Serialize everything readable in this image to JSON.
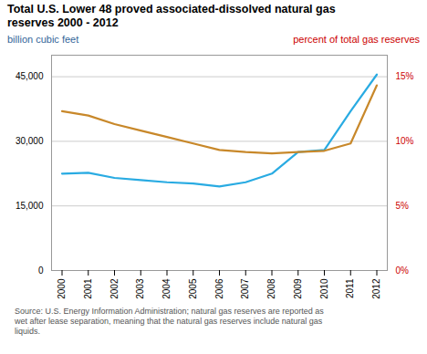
{
  "chart_data": {
    "type": "line",
    "title": "Total U.S. Lower 48 proved associated-dissolved natural gas\nreserves 2000 - 2012",
    "ylabel": "billion cubic feet",
    "y2label": "percent of total gas reserves",
    "source": "Source: U.S. Energy Information Administration; natural gas reserves are reported as\nwet after lease separation, meaning that the natural gas reserves include natural gas\nliquids.",
    "x": [
      2000,
      2001,
      2002,
      2003,
      2004,
      2005,
      2006,
      2007,
      2008,
      2009,
      2010,
      2011,
      2012
    ],
    "xlim": [
      1999.6,
      2012.4
    ],
    "xticks": [
      2000,
      2001,
      2002,
      2003,
      2004,
      2005,
      2006,
      2007,
      2008,
      2009,
      2010,
      2011,
      2012
    ],
    "series": [
      {
        "color": "#29ABE2",
        "values": [
          22500,
          22700,
          21500,
          21000,
          20500,
          20200,
          19500,
          20500,
          22500,
          27500,
          28000,
          37000,
          45500
        ]
      },
      {
        "color": "#C8882A",
        "values": [
          37000,
          36000,
          34000,
          32500,
          31000,
          29500,
          28000,
          27500,
          27200,
          27500,
          27800,
          29500,
          43000
        ]
      }
    ],
    "ylim": [
      0,
      50000
    ],
    "yticks": [
      0,
      {
        "value": 15000,
        "label": "15,000"
      },
      {
        "value": 30000,
        "label": "30,000"
      },
      {
        "value": 45000,
        "label": "45,000"
      }
    ],
    "y2lim": [
      0,
      0.16667
    ],
    "y2ticks": [
      {
        "value": 0,
        "label": "0%"
      },
      {
        "value": 0.05,
        "label": "5%"
      },
      {
        "value": 0.1,
        "label": "10%"
      },
      {
        "value": 0.15,
        "label": "15%"
      }
    ],
    "grid": true
  }
}
